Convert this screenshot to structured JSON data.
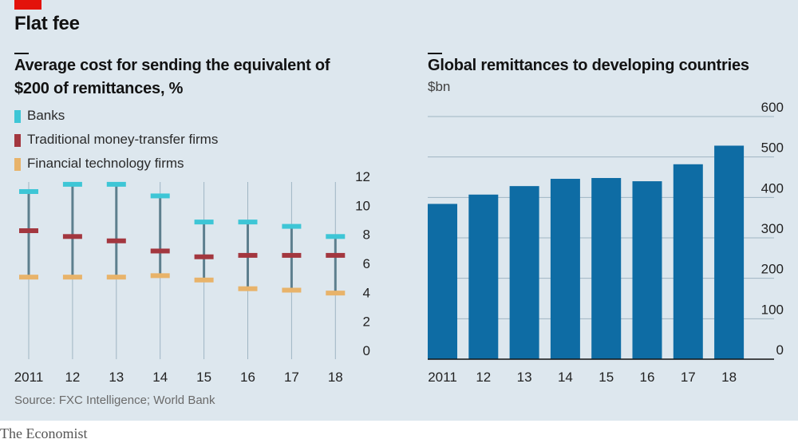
{
  "headline": "Flat fee",
  "source": "Source: FXC Intelligence; World Bank",
  "footer": "The Economist",
  "colors": {
    "banks": "#3ec6d6",
    "traditional": "#a3373f",
    "fintech": "#e8b36a",
    "stem": "#5d7f8e",
    "bar": "#0e6ca4",
    "grid": "#9fb5c3",
    "background": "#dde7ee"
  },
  "chart_data": [
    {
      "type": "dot-range",
      "title": "Average cost for sending the equivalent of $200 of remittances, %",
      "categories": [
        "2011",
        "12",
        "13",
        "14",
        "15",
        "16",
        "17",
        "18"
      ],
      "ylim": [
        0,
        12
      ],
      "yticks": [
        0,
        2,
        4,
        6,
        8,
        10,
        12
      ],
      "grid": "vertical",
      "legend_placement": "top-left",
      "series": [
        {
          "name": "Banks",
          "values": [
            10.9,
            11.4,
            11.4,
            10.6,
            8.8,
            8.8,
            8.5,
            7.8
          ]
        },
        {
          "name": "Traditional money-transfer firms",
          "values": [
            8.2,
            7.8,
            7.5,
            6.8,
            6.4,
            6.5,
            6.5,
            6.5
          ]
        },
        {
          "name": "Financial technology firms",
          "values": [
            5.0,
            5.0,
            5.0,
            5.1,
            4.8,
            4.2,
            4.1,
            3.9
          ]
        }
      ]
    },
    {
      "type": "bar",
      "title": "Global remittances to developing countries",
      "unit": "$bn",
      "categories": [
        "2011",
        "12",
        "13",
        "14",
        "15",
        "16",
        "17",
        "18"
      ],
      "values": [
        384,
        407,
        428,
        446,
        448,
        440,
        482,
        528
      ],
      "ylim": [
        0,
        600
      ],
      "yticks": [
        0,
        100,
        200,
        300,
        400,
        500,
        600
      ],
      "grid": "horizontal",
      "yaxis_side": "right"
    }
  ]
}
